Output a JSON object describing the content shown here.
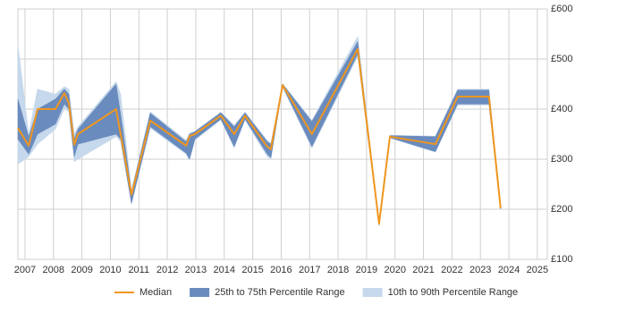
{
  "chart_data": {
    "type": "line",
    "x": [
      2006.75,
      2007.13,
      2007.44,
      2008.07,
      2008.38,
      2008.54,
      2008.73,
      2008.86,
      2010.2,
      2010.36,
      2010.74,
      2011.4,
      2012.66,
      2012.78,
      2012.97,
      2013.88,
      2014.35,
      2014.73,
      2015.51,
      2015.64,
      2016.05,
      2017.08,
      2018.69,
      2019.44,
      2019.82,
      2021.42,
      2022.2,
      2023.3,
      2023.71
    ],
    "series": [
      {
        "name": "10th to 90th Percentile Range",
        "color": "#c5d8ec",
        "kind": "band",
        "low": [
          290,
          305,
          330,
          360,
          400,
          395,
          295,
          300,
          345,
          335,
          210,
          362,
          310,
          298,
          338,
          378,
          322,
          378,
          305,
          300,
          444,
          322,
          505,
          167,
          342,
          314,
          408,
          408,
          199
        ],
        "high": [
          530,
          350,
          440,
          430,
          445,
          440,
          350,
          365,
          455,
          430,
          238,
          395,
          338,
          352,
          356,
          394,
          368,
          394,
          338,
          332,
          451,
          378,
          545,
          175,
          348,
          346,
          440,
          440,
          205
        ]
      },
      {
        "name": "25th to 75th Percentile Range",
        "color": "#6a8bbd",
        "kind": "band",
        "low": [
          340,
          310,
          350,
          370,
          410,
          400,
          305,
          330,
          350,
          340,
          212,
          365,
          312,
          300,
          340,
          380,
          325,
          380,
          310,
          303,
          445,
          325,
          510,
          168,
          343,
          315,
          410,
          410,
          200
        ],
        "high": [
          420,
          345,
          400,
          420,
          440,
          430,
          340,
          360,
          450,
          390,
          235,
          392,
          335,
          350,
          355,
          393,
          365,
          393,
          335,
          330,
          450,
          375,
          535,
          174,
          347,
          345,
          438,
          438,
          204
        ]
      },
      {
        "name": "Median",
        "color": "#f0961e",
        "kind": "line",
        "values": [
          362,
          327,
          400,
          400,
          432,
          412,
          329,
          350,
          400,
          350,
          229,
          377,
          327,
          346,
          350,
          387,
          350,
          387,
          325,
          320,
          448,
          350,
          520,
          171,
          345,
          330,
          425,
          425,
          202
        ]
      }
    ],
    "xlim": [
      2006.75,
      2025.35
    ],
    "xticks": [
      2007,
      2008,
      2009,
      2010,
      2011,
      2012,
      2013,
      2014,
      2015,
      2016,
      2017,
      2018,
      2019,
      2020,
      2021,
      2022,
      2023,
      2024,
      2025
    ],
    "ylim": [
      100,
      600
    ],
    "yticks": [
      {
        "value": 100,
        "label": "£100"
      },
      {
        "value": 200,
        "label": "£200"
      },
      {
        "value": 300,
        "label": "£300"
      },
      {
        "value": 400,
        "label": "£400"
      },
      {
        "value": 500,
        "label": "£500"
      },
      {
        "value": 600,
        "label": "£600"
      }
    ],
    "grid": true
  }
}
